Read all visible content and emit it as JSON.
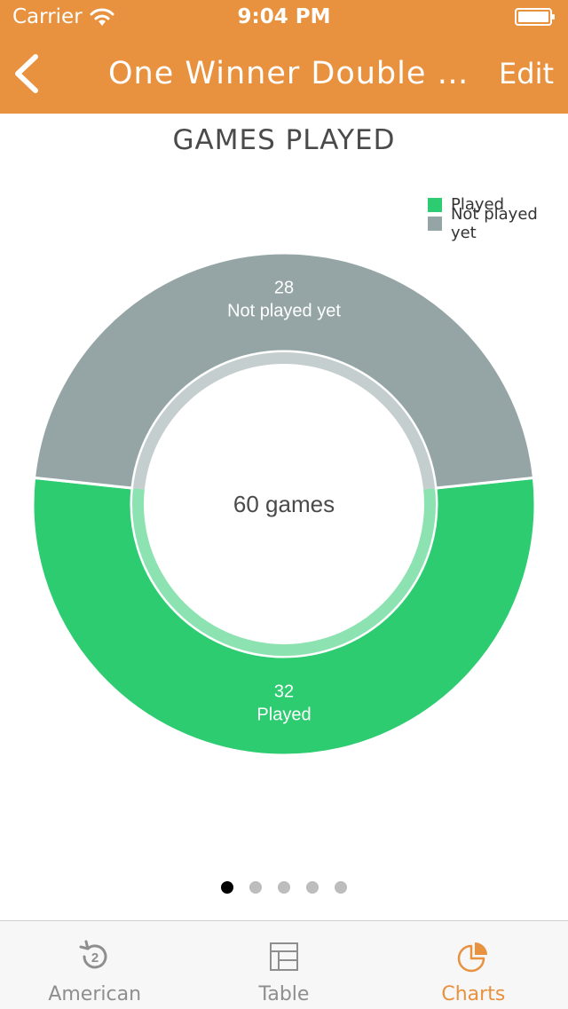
{
  "status_bar": {
    "carrier": "Carrier",
    "time": "9:04 PM"
  },
  "nav": {
    "title": "One Winner Double Elimination",
    "edit_label": "Edit"
  },
  "section_title": "GAMES PLAYED",
  "colors": {
    "accent": "#e8913f",
    "played": "#2ecc71",
    "not_played": "#95a5a6"
  },
  "chart_data": {
    "type": "pie",
    "variant": "donut",
    "center_label": "60 games",
    "legend_placement": "top-right",
    "slices": [
      {
        "label": "Played",
        "value": 32,
        "color": "#2ecc71"
      },
      {
        "label": "Not played yet",
        "value": 28,
        "color": "#95a5a6"
      }
    ]
  },
  "pager": {
    "count": 5,
    "active_index": 0
  },
  "tabs": [
    {
      "label": "American",
      "icon": "history-icon",
      "selected": false
    },
    {
      "label": "Table",
      "icon": "table-icon",
      "selected": false
    },
    {
      "label": "Charts",
      "icon": "pie-chart-icon",
      "selected": true
    }
  ]
}
